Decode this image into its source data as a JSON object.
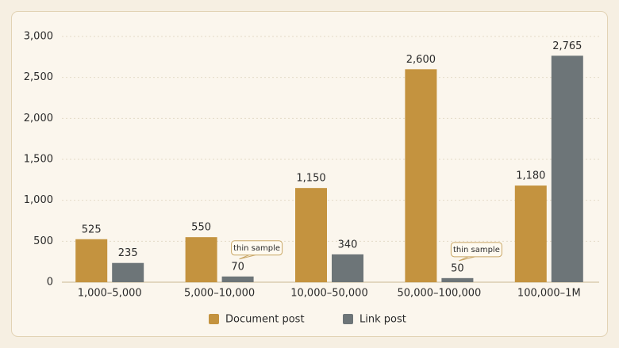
{
  "chart_data": {
    "type": "bar",
    "categories": [
      "1,000–5,000",
      "5,000–10,000",
      "10,000–50,000",
      "50,000–100,000",
      "100,000–1M"
    ],
    "series": [
      {
        "name": "Document post",
        "color": "#c4933f",
        "values": [
          525,
          550,
          1150,
          2600,
          1180
        ],
        "value_labels": [
          "525",
          "550",
          "1,150",
          "2,600",
          "1,180"
        ]
      },
      {
        "name": "Link post",
        "color": "#6d7578",
        "values": [
          235,
          70,
          340,
          50,
          2765
        ],
        "value_labels": [
          "235",
          "70",
          "340",
          "50",
          "2,765"
        ]
      }
    ],
    "ylim": [
      0,
      3000
    ],
    "yticks": [
      0,
      500,
      {
        "value": 1000,
        "label": "1,000"
      },
      {
        "value": 1500,
        "label": "1,500"
      },
      {
        "value": 2000,
        "label": "2,000"
      },
      {
        "value": 2500,
        "label": "2,500"
      },
      {
        "value": 3000,
        "label": "3,000"
      }
    ],
    "grid": true,
    "legend": "bottom",
    "annotations": [
      {
        "text": "thin sample",
        "category": "5,000–10,000",
        "series": "Link post"
      },
      {
        "text": "thin sample",
        "category": "50,000–100,000",
        "series": "Link post"
      }
    ]
  }
}
